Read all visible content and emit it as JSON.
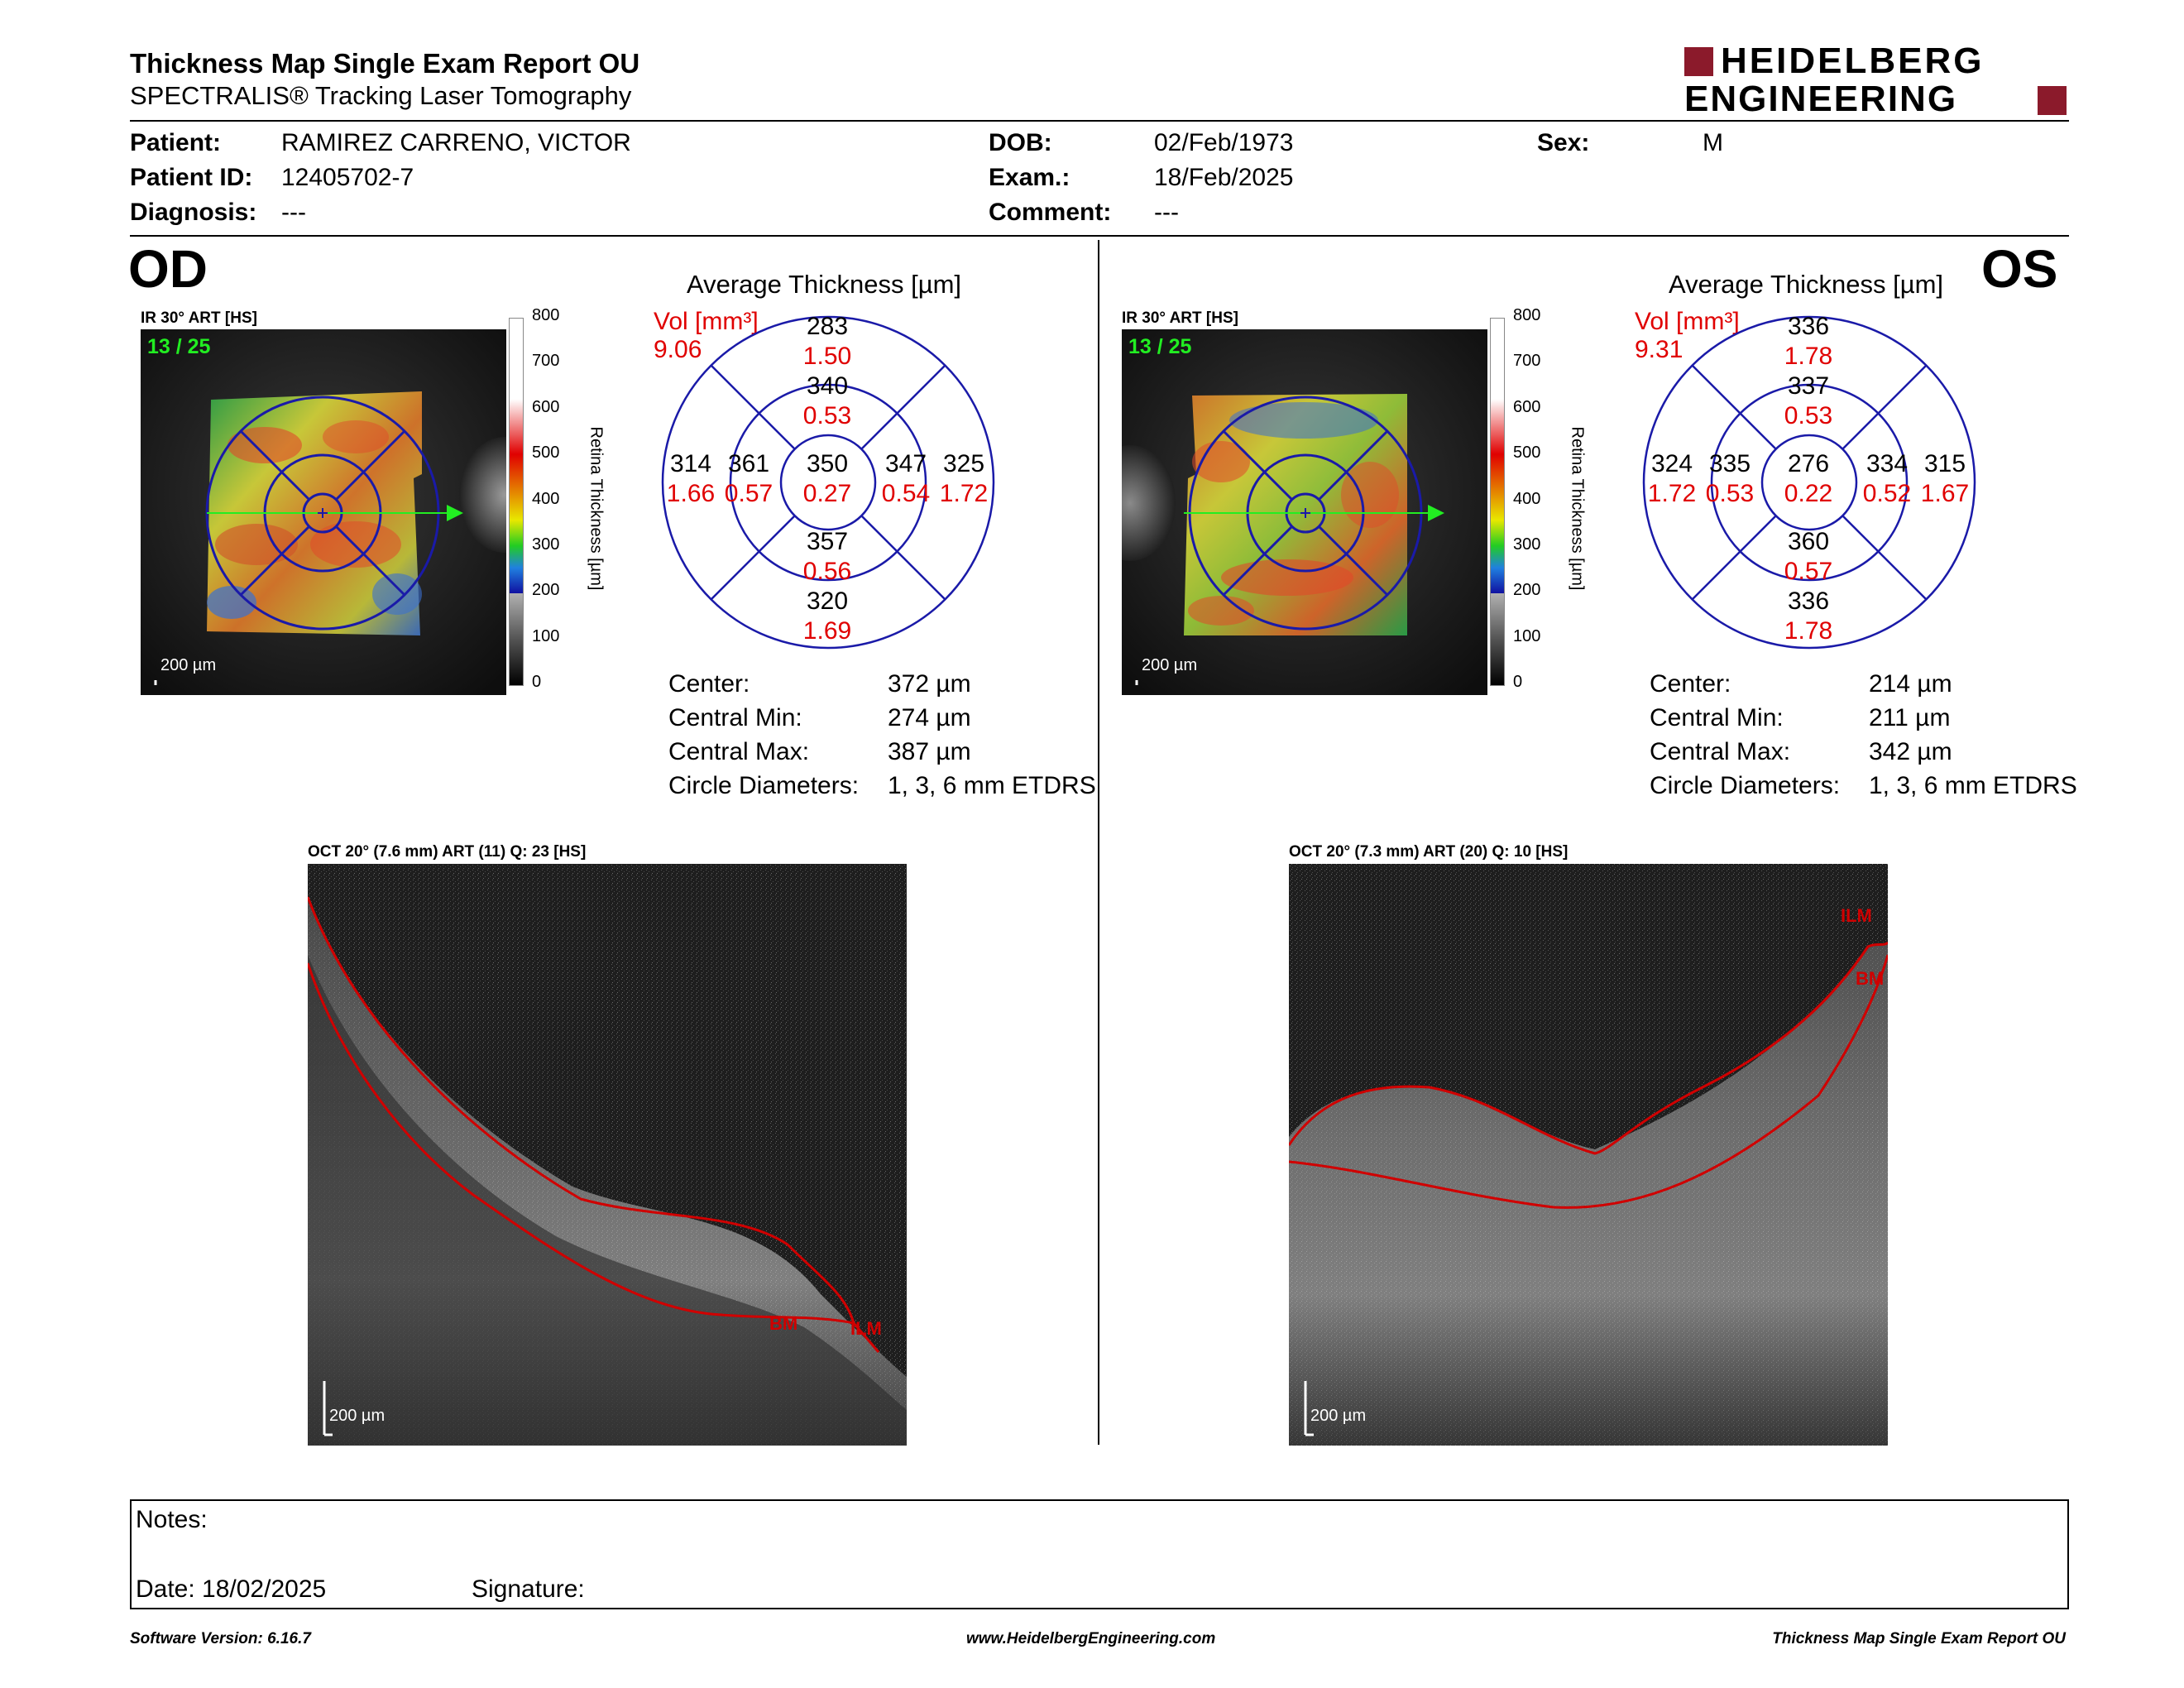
{
  "header": {
    "title": "Thickness Map Single Exam Report OU",
    "subtitle": "SPECTRALIS® Tracking Laser Tomography",
    "logo_line1": "HEIDELBERG",
    "logo_line2": "ENGINEERING",
    "logo_color": "#8b1a2b"
  },
  "patient": {
    "patient_label": "Patient:",
    "patient_value": "RAMIREZ CARRENO, VICTOR",
    "id_label": "Patient ID:",
    "id_value": "12405702-7",
    "diag_label": "Diagnosis:",
    "diag_value": "---",
    "dob_label": "DOB:",
    "dob_value": "02/Feb/1973",
    "exam_label": "Exam.:",
    "exam_value": "18/Feb/2025",
    "comment_label": "Comment:",
    "comment_value": "---",
    "sex_label": "Sex:",
    "sex_value": "M"
  },
  "od": {
    "eye": "OD",
    "ir_label": "IR 30° ART [HS]",
    "frames": "13 / 25",
    "scale": "200 µm",
    "avg_title": "Average Thickness [µm]",
    "vol_label": "Vol [mm³]",
    "vol_value": "9.06",
    "grid": {
      "outer_top": [
        "283",
        "1.50"
      ],
      "inner_top": [
        "340",
        "0.53"
      ],
      "outer_left": [
        "314",
        "1.66"
      ],
      "inner_left": [
        "361",
        "0.57"
      ],
      "center": [
        "350",
        "0.27"
      ],
      "inner_right": [
        "347",
        "0.54"
      ],
      "outer_right": [
        "325",
        "1.72"
      ],
      "inner_bottom": [
        "357",
        "0.56"
      ],
      "outer_bottom": [
        "320",
        "1.69"
      ]
    },
    "stats": [
      {
        "label": "Center:",
        "value": "372 µm"
      },
      {
        "label": "Central Min:",
        "value": "274 µm"
      },
      {
        "label": "Central Max:",
        "value": "387 µm"
      },
      {
        "label": "Circle Diameters:",
        "value": "1, 3, 6 mm ETDRS"
      }
    ],
    "oct_label": "OCT 20° (7.6 mm) ART (11) Q: 23 [HS]",
    "oct_scale": "200 µm",
    "layer1": "BM",
    "layer2": "ILM"
  },
  "os": {
    "eye": "OS",
    "ir_label": "IR 30° ART [HS]",
    "frames": "13 / 25",
    "scale": "200 µm",
    "avg_title": "Average Thickness [µm]",
    "vol_label": "Vol [mm³]",
    "vol_value": "9.31",
    "grid": {
      "outer_top": [
        "336",
        "1.78"
      ],
      "inner_top": [
        "337",
        "0.53"
      ],
      "outer_left": [
        "324",
        "1.72"
      ],
      "inner_left": [
        "335",
        "0.53"
      ],
      "center": [
        "276",
        "0.22"
      ],
      "inner_right": [
        "334",
        "0.52"
      ],
      "outer_right": [
        "315",
        "1.67"
      ],
      "inner_bottom": [
        "360",
        "0.57"
      ],
      "outer_bottom": [
        "336",
        "1.78"
      ]
    },
    "stats": [
      {
        "label": "Center:",
        "value": "214 µm"
      },
      {
        "label": "Central Min:",
        "value": "211 µm"
      },
      {
        "label": "Central Max:",
        "value": "342 µm"
      },
      {
        "label": "Circle Diameters:",
        "value": "1, 3, 6 mm ETDRS"
      }
    ],
    "oct_label": "OCT 20° (7.3 mm) ART (20) Q: 10 [HS]",
    "oct_scale": "200 µm",
    "layer1": "ILM",
    "layer2": "BM"
  },
  "colorbar": {
    "ticks": [
      "800",
      "700",
      "600",
      "500",
      "400",
      "300",
      "200",
      "100",
      "0"
    ],
    "title": "Retina Thickness [µm]"
  },
  "notes": {
    "notes_label": "Notes:",
    "date_label": "Date: 18/02/2025",
    "signature_label": "Signature:"
  },
  "footer": {
    "left": "Software Version: 6.16.7",
    "center": "www.HeidelbergEngineering.com",
    "right": "Thickness Map Single Exam Report OU"
  },
  "colors": {
    "red": "#e00000",
    "blue": "#1a1aa8",
    "green": "#22ee22"
  }
}
